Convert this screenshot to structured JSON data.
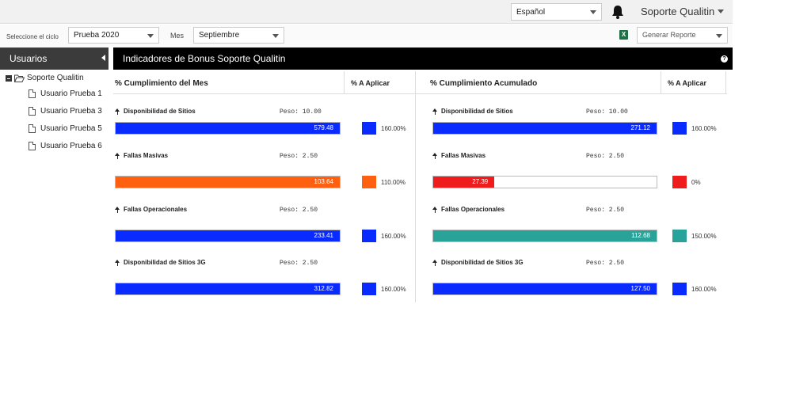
{
  "topbar": {
    "language": "Español",
    "user": "Soporte Qualitin"
  },
  "filters": {
    "cycle_label": "Seleccione el ciclo",
    "cycle_value": "Prueba 2020",
    "month_label": "Mes",
    "month_value": "Septiembre",
    "report_value": "Generar Reporte"
  },
  "sidebar": {
    "title": "Usuarios",
    "root": "Soporte Qualitin",
    "items": [
      "Usuario Prueba 1",
      "Usuario Prueba 3",
      "Usuario Prueba 5",
      "Usuario Prueba 6"
    ]
  },
  "main": {
    "title": "Indicadores de Bonus Soporte Qualitin",
    "month_col": "% Cumplimiento del Mes",
    "apply_col": "% A Aplicar",
    "acc_col": "% Cumplimiento Acumulado",
    "apply_col2": "% A Aplicar"
  },
  "indicators": [
    {
      "name": "Disponibilidad de Sitios",
      "peso": "Peso: 10.00",
      "month": {
        "value": "579.48",
        "fill": 1.0,
        "color": "#0a2bff",
        "apply": "160.00%"
      },
      "acc": {
        "value": "271.12",
        "fill": 1.0,
        "color": "#0a2bff",
        "apply": "160.00%"
      }
    },
    {
      "name": "Fallas Masivas",
      "peso": "Peso: 2.50",
      "month": {
        "value": "103.64",
        "fill": 1.0,
        "color": "#ff6010",
        "apply": "110.00%"
      },
      "acc": {
        "value": "27.39",
        "fill": 0.2739,
        "color": "#ee1c1c",
        "apply": "0%"
      }
    },
    {
      "name": "Fallas Operacionales",
      "peso": "Peso: 2.50",
      "month": {
        "value": "233.41",
        "fill": 1.0,
        "color": "#0a2bff",
        "apply": "160.00%"
      },
      "acc": {
        "value": "112.68",
        "fill": 1.0,
        "color": "#29a39a",
        "apply": "150.00%"
      }
    },
    {
      "name": "Disponibilidad de Sitios 3G",
      "peso": "Peso: 2.50",
      "month": {
        "value": "312.82",
        "fill": 1.0,
        "color": "#0a2bff",
        "apply": "160.00%"
      },
      "acc": {
        "value": "127.50",
        "fill": 1.0,
        "color": "#0a2bff",
        "apply": "160.00%"
      }
    }
  ]
}
